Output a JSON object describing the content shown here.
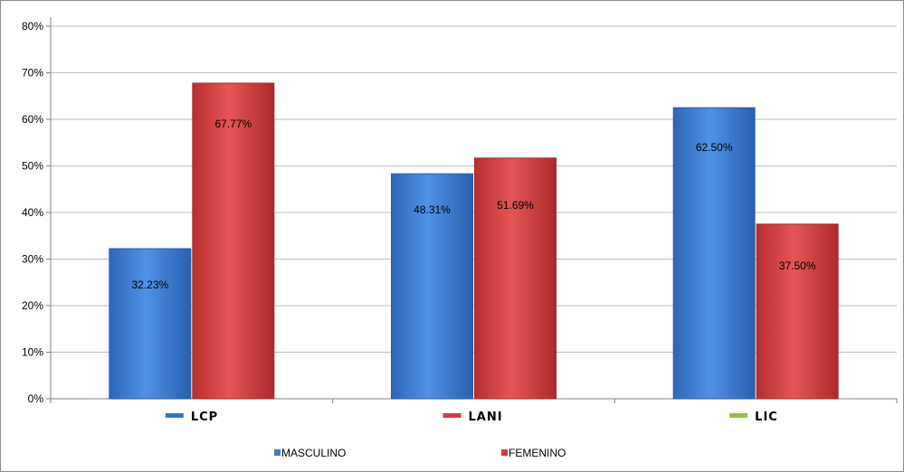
{
  "chart_data": {
    "type": "bar",
    "categories": [
      "LCP",
      "LANI",
      "LIC"
    ],
    "category_marker_colors": [
      "#2e75d6",
      "#d33b3b",
      "#8bc53f"
    ],
    "series": [
      {
        "name": "MASCULINO",
        "color": "#3b78d0",
        "values": [
          32.23,
          48.31,
          62.5
        ],
        "labels": [
          "32.23%",
          "48.31%",
          "62.50%"
        ]
      },
      {
        "name": "FEMENINO",
        "color": "#cf3b3b",
        "values": [
          67.77,
          51.69,
          37.5
        ],
        "labels": [
          "67.77%",
          "51.69%",
          "37.50%"
        ]
      }
    ],
    "ylim": [
      0,
      80
    ],
    "yticks": [
      "0%",
      "10%",
      "20%",
      "30%",
      "40%",
      "50%",
      "60%",
      "70%",
      "80%"
    ],
    "grid": true,
    "legend_position": "bottom"
  }
}
